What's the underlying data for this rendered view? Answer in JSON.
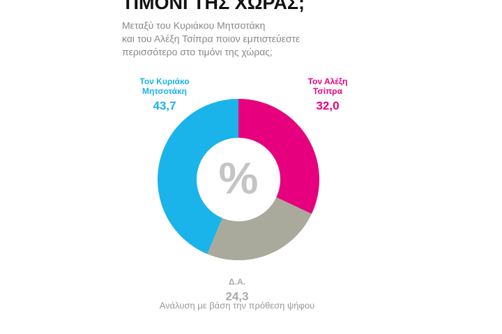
{
  "chart_data": {
    "type": "donut",
    "title": "ΤΙΜΟΝΙ ΤΗΣ ΧΩΡΑΣ;",
    "subtitle": [
      "Μεταξύ του Κυριάκου Μητσοτάκη",
      "και του Αλέξη Τσίπρα ποιον εμπιστεύεστε",
      "περισσότερο στο τιμόνι της χώρας;"
    ],
    "center_label": "%",
    "categories": [
      [
        "Τον Αλέξη",
        "Τσίπρα"
      ],
      [
        "Δ.Α."
      ],
      [
        "Τον Κυριάκο",
        "Μητσοτάκη"
      ]
    ],
    "values": [
      32.0,
      24.3,
      43.7
    ],
    "value_labels": [
      "32,0",
      "24,3",
      "43,7"
    ],
    "colors": [
      "#e6007e",
      "#a9aa9c",
      "#1ab3ea"
    ],
    "note": "Ανάλυση με βάση την πρόθεση ψήφου"
  }
}
